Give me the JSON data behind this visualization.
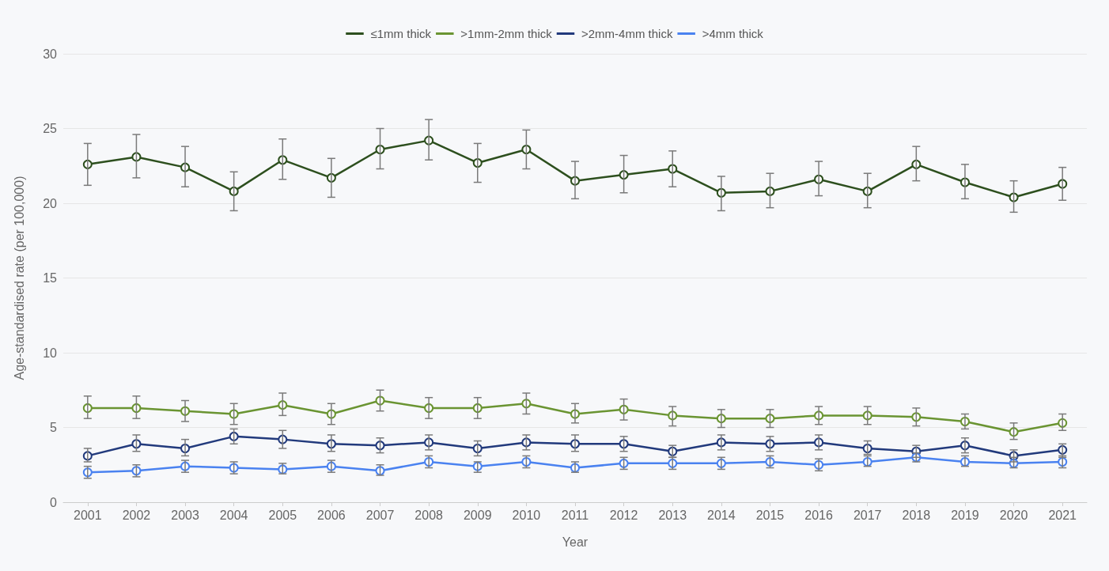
{
  "chart_data": {
    "type": "line",
    "xlabel": "Year",
    "ylabel": "Age-standardised rate (per 100,000)",
    "categories": [
      "2001",
      "2002",
      "2003",
      "2004",
      "2005",
      "2006",
      "2007",
      "2008",
      "2009",
      "2010",
      "2011",
      "2012",
      "2013",
      "2014",
      "2015",
      "2016",
      "2017",
      "2018",
      "2019",
      "2020",
      "2021"
    ],
    "ylim": [
      0,
      30
    ],
    "yticks": [
      0,
      5,
      10,
      15,
      20,
      25,
      30
    ],
    "grid": "y",
    "legend": "top",
    "marker": "circle",
    "line_style": "solid",
    "series": [
      {
        "name": "≤1mm thick",
        "color": "#2d4f1e",
        "values": [
          22.6,
          23.1,
          22.4,
          20.8,
          22.9,
          21.7,
          23.6,
          24.2,
          22.7,
          23.6,
          21.5,
          21.9,
          22.3,
          20.7,
          20.8,
          21.6,
          20.8,
          22.6,
          21.4,
          20.4,
          21.3
        ],
        "errors": [
          [
            21.2,
            24.0
          ],
          [
            21.7,
            24.6
          ],
          [
            21.1,
            23.8
          ],
          [
            19.5,
            22.1
          ],
          [
            21.6,
            24.3
          ],
          [
            20.4,
            23.0
          ],
          [
            22.3,
            25.0
          ],
          [
            22.9,
            25.6
          ],
          [
            21.4,
            24.0
          ],
          [
            22.3,
            24.9
          ],
          [
            20.3,
            22.8
          ],
          [
            20.7,
            23.2
          ],
          [
            21.1,
            23.5
          ],
          [
            19.5,
            21.8
          ],
          [
            19.7,
            22.0
          ],
          [
            20.5,
            22.8
          ],
          [
            19.7,
            22.0
          ],
          [
            21.5,
            23.8
          ],
          [
            20.3,
            22.6
          ],
          [
            19.4,
            21.5
          ],
          [
            20.2,
            22.4
          ]
        ]
      },
      {
        "name": ">1mm-2mm thick",
        "color": "#6a9432",
        "values": [
          6.3,
          6.3,
          6.1,
          5.9,
          6.5,
          5.9,
          6.8,
          6.3,
          6.3,
          6.6,
          5.9,
          6.2,
          5.8,
          5.6,
          5.6,
          5.8,
          5.8,
          5.7,
          5.4,
          4.7,
          5.3
        ],
        "errors": [
          [
            5.6,
            7.1
          ],
          [
            5.6,
            7.1
          ],
          [
            5.4,
            6.8
          ],
          [
            5.2,
            6.6
          ],
          [
            5.8,
            7.3
          ],
          [
            5.2,
            6.6
          ],
          [
            6.1,
            7.5
          ],
          [
            5.6,
            7.0
          ],
          [
            5.6,
            7.0
          ],
          [
            5.9,
            7.3
          ],
          [
            5.3,
            6.6
          ],
          [
            5.5,
            6.9
          ],
          [
            5.1,
            6.4
          ],
          [
            5.0,
            6.2
          ],
          [
            5.0,
            6.2
          ],
          [
            5.2,
            6.4
          ],
          [
            5.2,
            6.4
          ],
          [
            5.1,
            6.3
          ],
          [
            4.9,
            5.9
          ],
          [
            4.2,
            5.3
          ],
          [
            4.8,
            5.9
          ]
        ]
      },
      {
        "name": ">2mm-4mm thick",
        "color": "#223a7c",
        "values": [
          3.1,
          3.9,
          3.6,
          4.4,
          4.2,
          3.9,
          3.8,
          4.0,
          3.6,
          4.0,
          3.9,
          3.9,
          3.4,
          4.0,
          3.9,
          4.0,
          3.6,
          3.4,
          3.8,
          3.1,
          3.5
        ],
        "errors": [
          [
            2.7,
            3.6
          ],
          [
            3.4,
            4.5
          ],
          [
            3.1,
            4.2
          ],
          [
            3.9,
            4.9
          ],
          [
            3.6,
            4.8
          ],
          [
            3.4,
            4.5
          ],
          [
            3.3,
            4.3
          ],
          [
            3.5,
            4.5
          ],
          [
            3.1,
            4.1
          ],
          [
            3.5,
            4.5
          ],
          [
            3.4,
            4.5
          ],
          [
            3.4,
            4.4
          ],
          [
            3.0,
            3.8
          ],
          [
            3.5,
            4.5
          ],
          [
            3.4,
            4.4
          ],
          [
            3.5,
            4.5
          ],
          [
            3.2,
            4.1
          ],
          [
            3.0,
            3.8
          ],
          [
            3.3,
            4.3
          ],
          [
            2.7,
            3.5
          ],
          [
            3.0,
            3.9
          ]
        ]
      },
      {
        "name": ">4mm thick",
        "color": "#4a82f0",
        "values": [
          2.0,
          2.1,
          2.4,
          2.3,
          2.2,
          2.4,
          2.1,
          2.7,
          2.4,
          2.7,
          2.3,
          2.6,
          2.6,
          2.6,
          2.7,
          2.5,
          2.7,
          3.0,
          2.7,
          2.6,
          2.7
        ],
        "errors": [
          [
            1.6,
            2.4
          ],
          [
            1.7,
            2.5
          ],
          [
            2.0,
            2.8
          ],
          [
            1.9,
            2.7
          ],
          [
            1.9,
            2.6
          ],
          [
            2.0,
            2.8
          ],
          [
            1.8,
            2.5
          ],
          [
            2.3,
            3.1
          ],
          [
            2.0,
            2.7
          ],
          [
            2.3,
            3.1
          ],
          [
            2.0,
            2.7
          ],
          [
            2.2,
            3.0
          ],
          [
            2.2,
            3.0
          ],
          [
            2.2,
            3.0
          ],
          [
            2.3,
            3.1
          ],
          [
            2.1,
            2.9
          ],
          [
            2.4,
            3.1
          ],
          [
            2.7,
            3.3
          ],
          [
            2.4,
            3.1
          ],
          [
            2.3,
            3.0
          ],
          [
            2.3,
            3.1
          ]
        ]
      }
    ]
  }
}
